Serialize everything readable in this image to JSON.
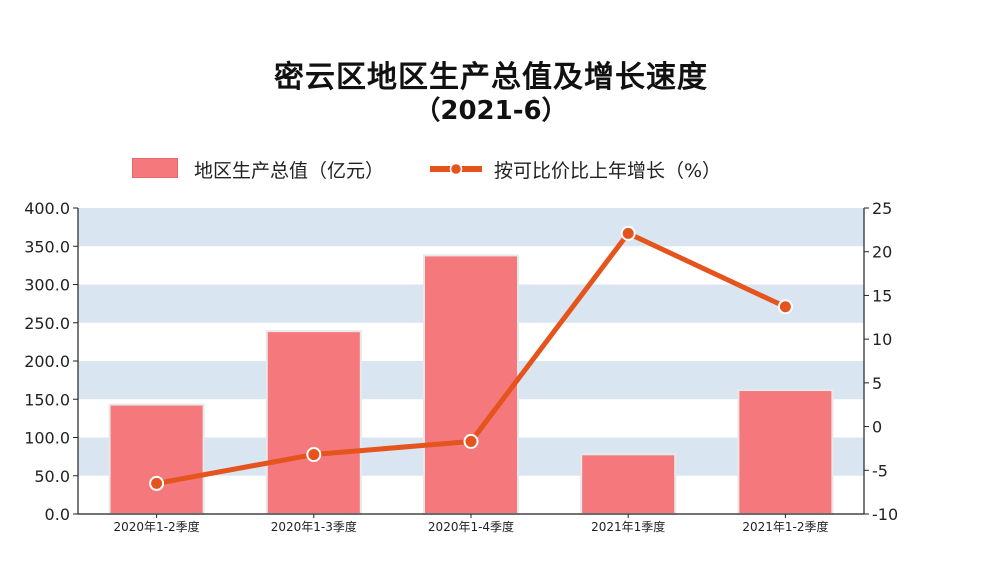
{
  "chart_data": {
    "type": "bar",
    "title": "密云区地区生产总值及增长速度",
    "subtitle": "（2021-6）",
    "categories": [
      "2020年1-2季度",
      "2020年1-3季度",
      "2020年1-4季度",
      "2021年1季度",
      "2021年1-2季度"
    ],
    "series": [
      {
        "name": "地区生产总值（亿元）",
        "kind": "bar",
        "axis": "left",
        "values": [
          143,
          239,
          338,
          78,
          162
        ]
      },
      {
        "name": "按可比价比上年增长（%）",
        "kind": "line",
        "axis": "right",
        "values": [
          -6.5,
          -3.2,
          -1.7,
          22.1,
          13.7
        ]
      }
    ],
    "y_left": {
      "lim": [
        0,
        400
      ],
      "ticks": [
        "0.0",
        "50.0",
        "100.0",
        "150.0",
        "200.0",
        "250.0",
        "300.0",
        "350.0",
        "400.0"
      ]
    },
    "y_right": {
      "lim": [
        -10,
        25
      ],
      "ticks": [
        "-10",
        "-5",
        "0",
        "5",
        "10",
        "15",
        "20",
        "25"
      ]
    },
    "legend": "top-left",
    "colors": {
      "bar": "#f4787c",
      "line": "#e4541c",
      "band": "#d9e5f1"
    }
  }
}
